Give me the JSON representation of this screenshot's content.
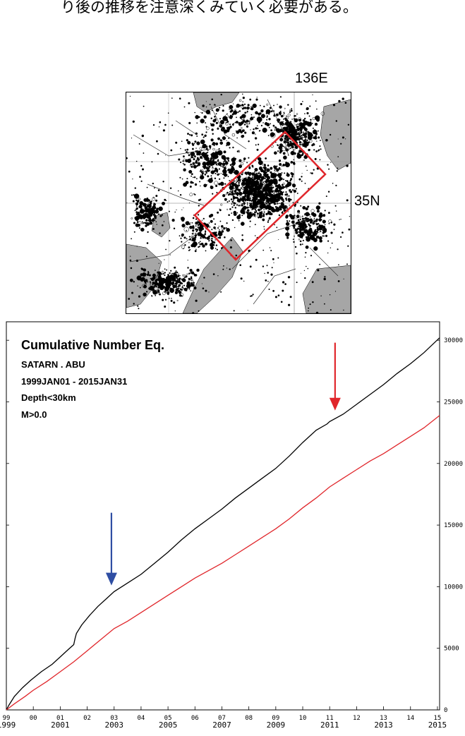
{
  "caption": "り後の推移を注意深くみていく必要がある。",
  "map": {
    "lon_label": "136E",
    "lat_label": "35N",
    "region_box_color": "#e0262b"
  },
  "chart_data": {
    "type": "line",
    "title": "Cumulative Number Eq.",
    "annotations": [
      "SATARN . ABU",
      "1999JAN01 - 2015JAN31",
      "Depth<30km",
      "M>0.0"
    ],
    "xlim": [
      1999.0,
      2015.08
    ],
    "ylim": [
      0,
      31500
    ],
    "y_ticks": [
      0,
      5000,
      10000,
      15000,
      20000,
      25000,
      30000
    ],
    "x_ticks_short": [
      "99",
      "00",
      "01",
      "02",
      "03",
      "04",
      "05",
      "06",
      "07",
      "08",
      "09",
      "10",
      "11",
      "12",
      "13",
      "14",
      "15"
    ],
    "x_ticks_year": [
      "1999",
      "2001",
      "2003",
      "2005",
      "2007",
      "2009",
      "2011",
      "2013",
      "2015"
    ],
    "series": [
      {
        "color": "#000000",
        "x": [
          1999.0,
          1999.1,
          1999.3,
          1999.6,
          1999.9,
          2000.3,
          2000.7,
          2001.0,
          2001.3,
          2001.5,
          2001.55,
          2001.6,
          2001.8,
          2002.1,
          2002.4,
          2002.7,
          2003.0,
          2003.5,
          2004.0,
          2004.5,
          2005.0,
          2005.5,
          2006.0,
          2006.5,
          2007.0,
          2007.5,
          2008.0,
          2008.5,
          2009.0,
          2009.5,
          2010.0,
          2010.5,
          2010.9,
          2011.0,
          2011.5,
          2012.0,
          2012.5,
          2013.0,
          2013.5,
          2014.0,
          2014.5,
          2015.08
        ],
        "y": [
          0,
          400,
          1100,
          1800,
          2400,
          3100,
          3700,
          4300,
          4900,
          5300,
          5800,
          6200,
          6900,
          7700,
          8400,
          9000,
          9600,
          10300,
          11000,
          11900,
          12800,
          13800,
          14700,
          15500,
          16300,
          17200,
          18000,
          18800,
          19600,
          20600,
          21700,
          22700,
          23200,
          23400,
          24000,
          24800,
          25600,
          26400,
          27300,
          28100,
          29000,
          30200
        ]
      },
      {
        "color": "#e0262b",
        "x": [
          1999.0,
          1999.3,
          1999.7,
          2000.0,
          2000.5,
          2001.0,
          2001.5,
          2002.0,
          2002.5,
          2003.0,
          2003.5,
          2004.0,
          2004.5,
          2005.0,
          2005.5,
          2006.0,
          2006.5,
          2007.0,
          2007.5,
          2008.0,
          2008.5,
          2009.0,
          2009.5,
          2010.0,
          2010.5,
          2011.0,
          2011.5,
          2012.0,
          2012.5,
          2013.0,
          2013.5,
          2014.0,
          2014.5,
          2015.08
        ],
        "y": [
          0,
          500,
          1100,
          1600,
          2300,
          3100,
          3900,
          4800,
          5700,
          6600,
          7200,
          7900,
          8600,
          9300,
          10000,
          10700,
          11300,
          11900,
          12600,
          13300,
          14000,
          14700,
          15500,
          16400,
          17200,
          18100,
          18800,
          19500,
          20200,
          20800,
          21500,
          22200,
          22900,
          23900
        ]
      }
    ],
    "arrows": [
      {
        "name": "blue-arrow",
        "color": "#2f4ea3",
        "x": 2002.9,
        "y_top": 16000,
        "y_bottom": 10100
      },
      {
        "name": "red-arrow",
        "color": "#e0262b",
        "x": 2011.2,
        "y_top": 29800,
        "y_bottom": 24300
      }
    ]
  }
}
